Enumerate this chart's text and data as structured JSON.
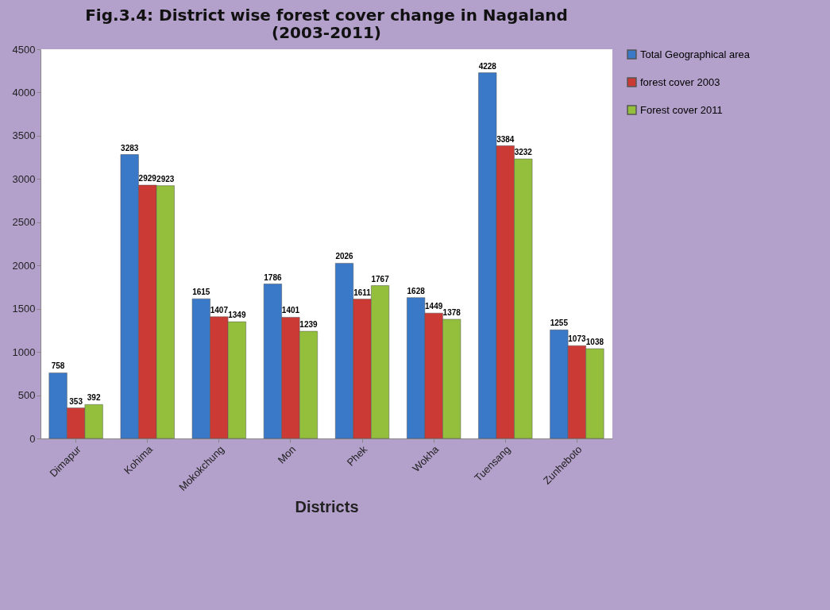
{
  "chart_data": {
    "type": "bar",
    "title": [
      "Fig.3.4: District wise forest cover change in Nagaland",
      "(2003-2011)"
    ],
    "xlabel": "Districts",
    "categories": [
      "Dimapur",
      "Kohima",
      "Mokokchung",
      "Mon",
      "Phek",
      "Wokha",
      "Tuensang",
      "Zunheboto"
    ],
    "series": [
      {
        "name": "Total Geographical area",
        "color": "#3a78c8",
        "values": [
          758,
          3283,
          1615,
          1786,
          2026,
          1628,
          4228,
          1255
        ]
      },
      {
        "name": "forest cover 2003",
        "color": "#cc3a36",
        "values": [
          353,
          2929,
          1407,
          1401,
          1611,
          1449,
          3384,
          1073
        ]
      },
      {
        "name": "Forest cover 2011",
        "color": "#94bf3c",
        "values": [
          392,
          2923,
          1349,
          1239,
          1767,
          1378,
          3232,
          1038
        ]
      }
    ],
    "ylim": [
      0,
      4500
    ],
    "yticks": [
      0,
      500,
      1000,
      1500,
      2000,
      2500,
      3000,
      3500,
      4000,
      4500
    ],
    "data_labels": true,
    "legend": "right",
    "grid": false
  }
}
